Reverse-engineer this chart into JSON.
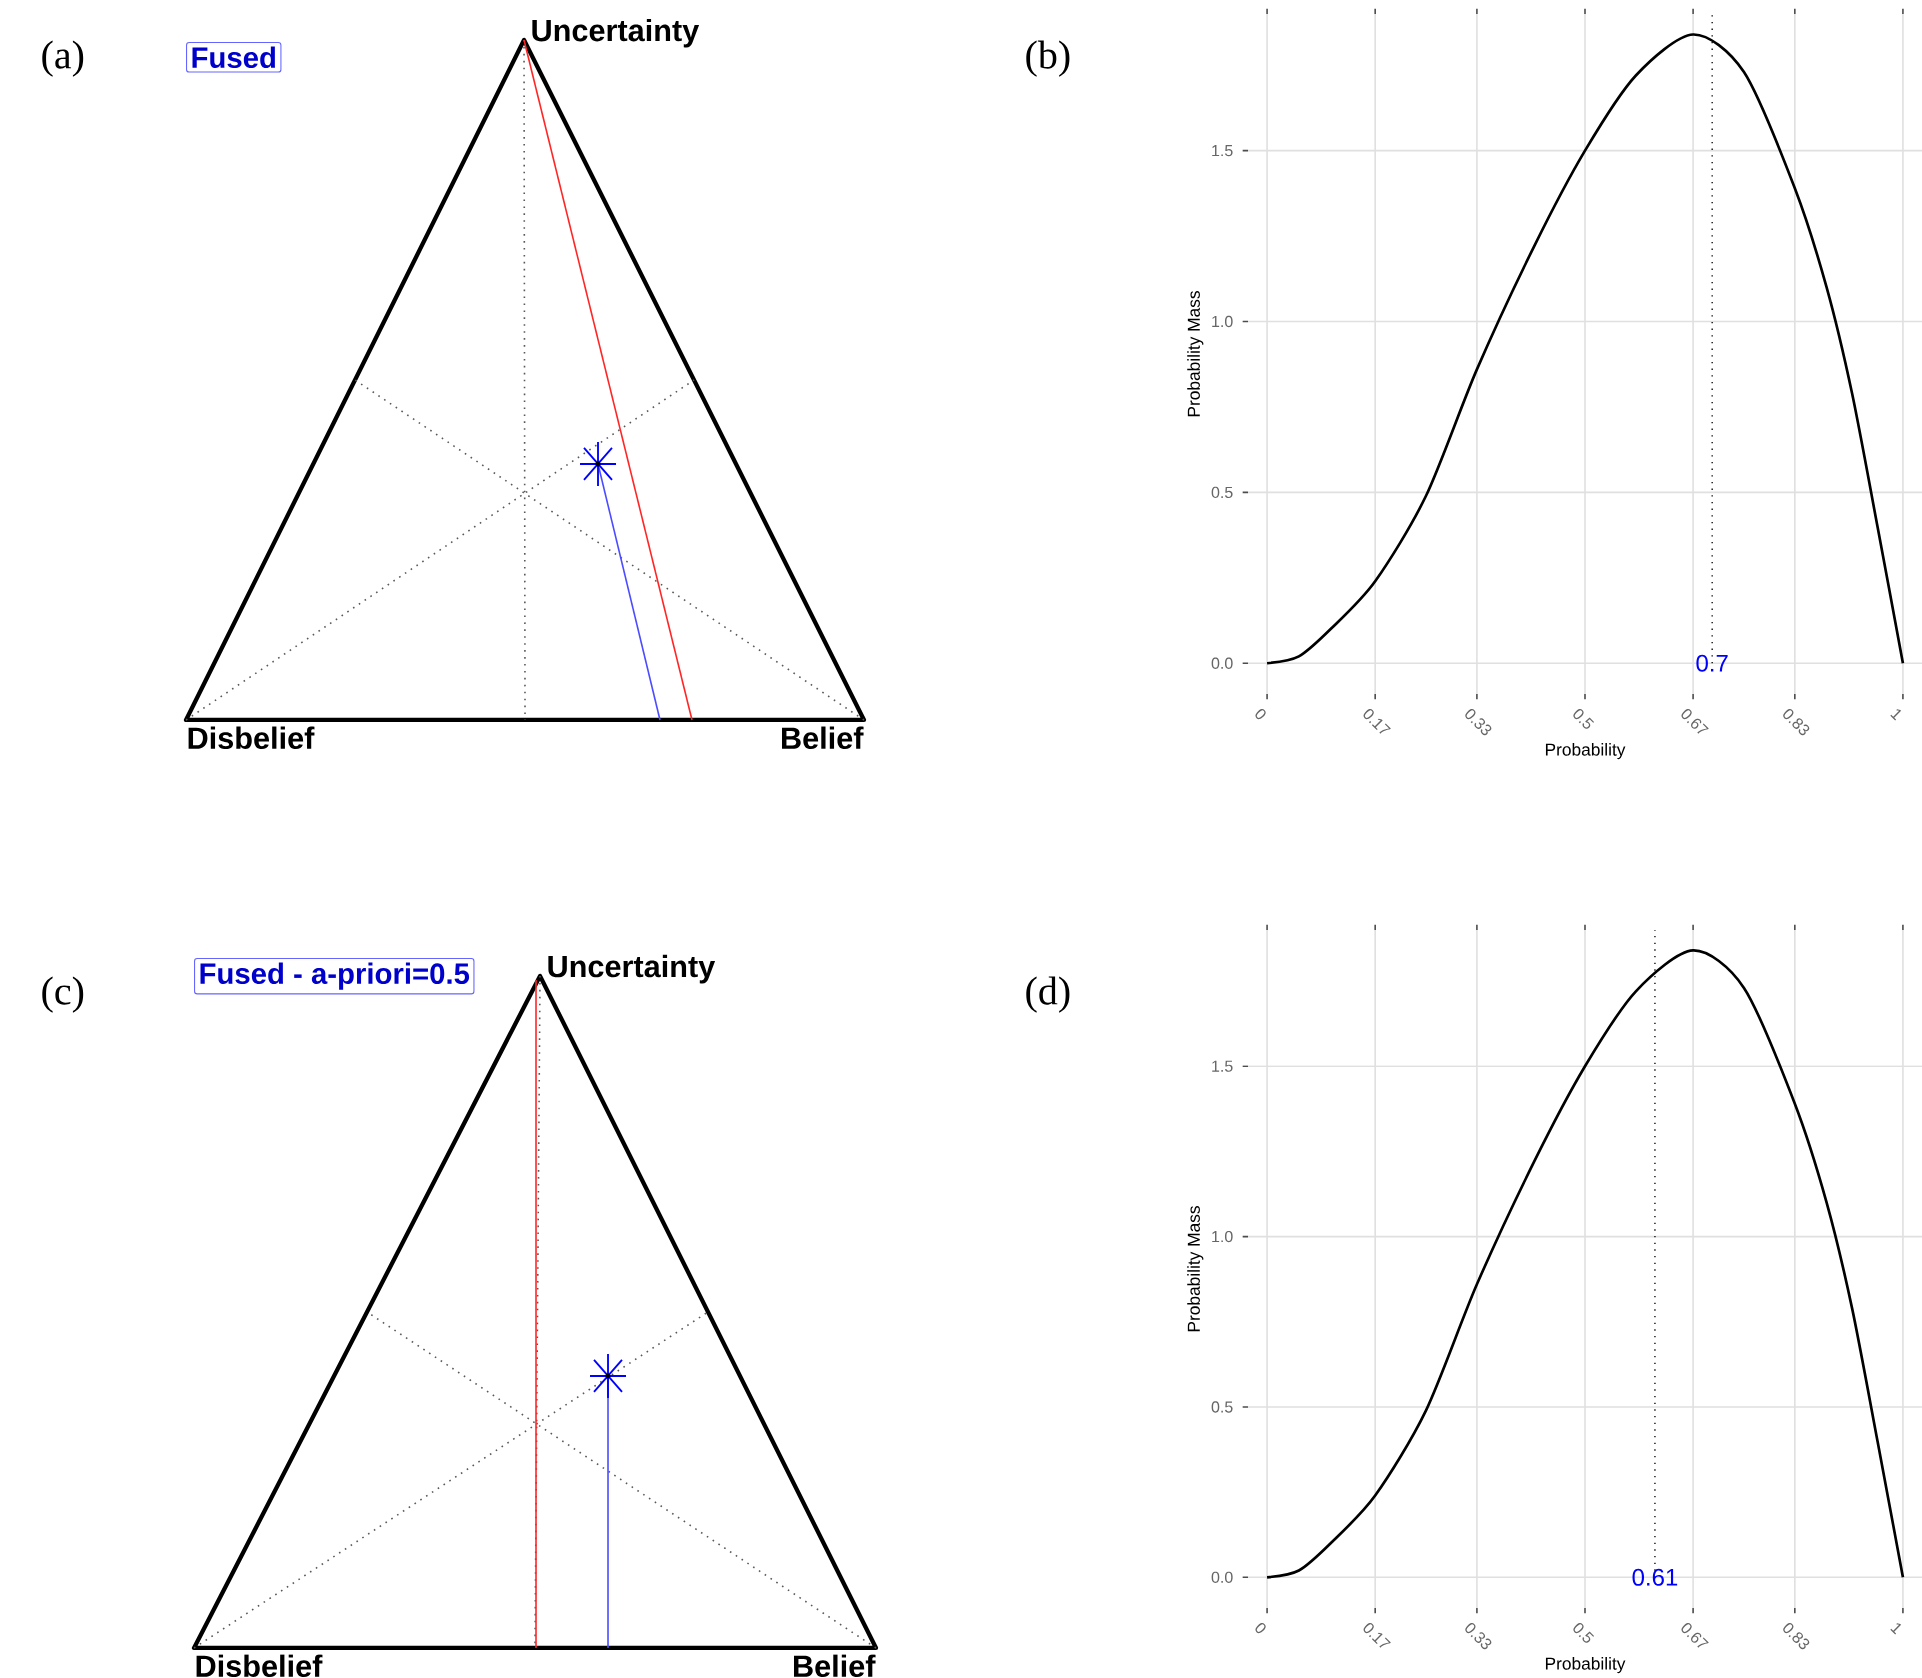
{
  "chart_data": [
    {
      "type": "other",
      "title": "Fused",
      "annotations": [
        "(a)",
        "Uncertainty",
        "Disbelief",
        "Belief"
      ]
    },
    {
      "type": "line",
      "xlabel": "Probability",
      "ylabel": "Probability Mass",
      "annotations": [
        "(b)"
      ],
      "x": [
        0,
        0.05,
        0.1,
        0.17,
        0.25,
        0.33,
        0.42,
        0.5,
        0.58,
        0.67,
        0.75,
        0.83,
        0.88,
        0.92,
        0.96,
        1
      ],
      "values": [
        0,
        0.02,
        0.1,
        0.24,
        0.49,
        0.86,
        1.22,
        1.5,
        1.72,
        1.84,
        1.73,
        1.39,
        1.1,
        0.79,
        0.4,
        0
      ],
      "color": "#000000",
      "xlim": [
        -0.03,
        1.03
      ],
      "ylim": [
        -0.09,
        1.9
      ],
      "xticks": [
        0,
        0.17,
        0.33,
        0.5,
        0.67,
        0.83,
        1
      ],
      "yticks": [
        {
          "value": 0,
          "label": "0.0"
        },
        {
          "value": 0.5,
          "label": "0.5"
        },
        {
          "value": 1,
          "label": "1.0"
        },
        {
          "value": 1.5,
          "label": "1.5"
        }
      ],
      "grid": true,
      "ref_lines": [
        {
          "axis": "x",
          "value": 0.7,
          "label": "0.7",
          "line_style": "dotted"
        }
      ]
    },
    {
      "type": "other",
      "title": "Fused - a-priori=0.5",
      "annotations": [
        "(c)",
        "Uncertainty",
        "Disbelief",
        "Belief"
      ]
    },
    {
      "type": "line",
      "xlabel": "Probability",
      "ylabel": "Probability Mass",
      "annotations": [
        "(d)"
      ],
      "x": [
        0,
        0.05,
        0.1,
        0.17,
        0.25,
        0.33,
        0.42,
        0.5,
        0.58,
        0.67,
        0.75,
        0.83,
        0.88,
        0.92,
        0.96,
        1
      ],
      "values": [
        0,
        0.02,
        0.1,
        0.24,
        0.49,
        0.86,
        1.22,
        1.5,
        1.72,
        1.84,
        1.73,
        1.39,
        1.1,
        0.79,
        0.4,
        0
      ],
      "color": "#000000",
      "xlim": [
        -0.03,
        1.03
      ],
      "ylim": [
        -0.09,
        1.9
      ],
      "xticks": [
        0,
        0.17,
        0.33,
        0.5,
        0.67,
        0.83,
        1
      ],
      "yticks": [
        {
          "value": 0,
          "label": "0.0"
        },
        {
          "value": 0.5,
          "label": "0.5"
        },
        {
          "value": 1,
          "label": "1.0"
        },
        {
          "value": 1.5,
          "label": "1.5"
        }
      ],
      "grid": true,
      "ref_lines": [
        {
          "axis": "x",
          "value": 0.61,
          "label": "0.61",
          "line_style": "dotted"
        }
      ]
    }
  ]
}
